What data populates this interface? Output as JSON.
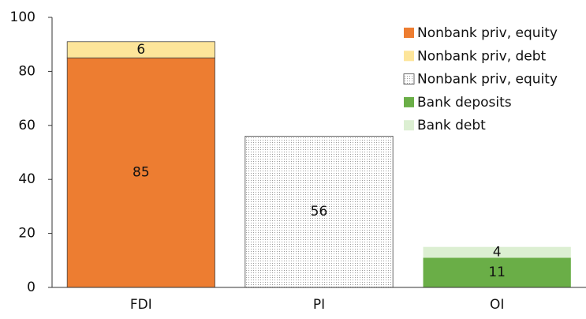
{
  "chart_data": {
    "type": "stacked_bar",
    "categories": [
      "FDI",
      "PI",
      "OI"
    ],
    "series": [
      {
        "name": "Nonbank priv, equity",
        "color": "#ed7d31",
        "values": [
          85,
          null,
          null
        ]
      },
      {
        "name": "Nonbank priv, debt",
        "color": "#fde59a",
        "values": [
          6,
          null,
          null
        ]
      },
      {
        "name": "Nonbank priv, equity",
        "color": "#ffffff",
        "pattern": "dots",
        "values": [
          null,
          56,
          null
        ]
      },
      {
        "name": "Bank deposits",
        "color": "#6aae47",
        "values": [
          null,
          null,
          11
        ]
      },
      {
        "name": "Bank debt",
        "color": "#dcefd2",
        "values": [
          null,
          null,
          4
        ]
      }
    ],
    "ylim": [
      0,
      100
    ],
    "yticks": [
      0,
      20,
      40,
      60,
      80,
      100
    ],
    "grid": false,
    "legend": "top-right"
  }
}
